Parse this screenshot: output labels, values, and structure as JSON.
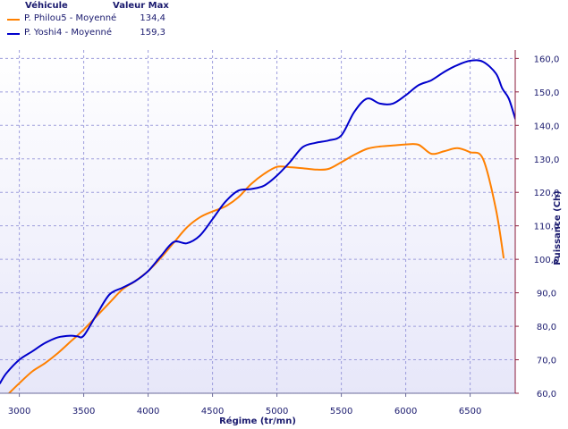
{
  "legend": {
    "header_vehicle": "Véhicule",
    "header_max": "Valeur Max"
  },
  "chart_data": {
    "type": "line",
    "xlabel": "Régime (tr/mn)",
    "ylabel": "Puissance (Ch)",
    "xlim": [
      2850,
      6850
    ],
    "ylim": [
      60,
      162.5
    ],
    "x_ticks": [
      3000,
      3500,
      4000,
      4500,
      5000,
      5500,
      6000,
      6500
    ],
    "x_tick_labels": [
      "3000",
      "3500",
      "4000",
      "4500",
      "5000",
      "5500",
      "6000",
      "6500"
    ],
    "y_ticks": [
      60,
      70,
      80,
      90,
      100,
      110,
      120,
      130,
      140,
      150,
      160
    ],
    "y_tick_labels": [
      "60,0",
      "70,0",
      "80,0",
      "90,0",
      "100,0",
      "110,0",
      "120,0",
      "130,0",
      "140,0",
      "150,0",
      "160,0"
    ],
    "grid": true,
    "y_axis_side": "right",
    "series": [
      {
        "name": "P. Philou5 - Moyenné",
        "max_label": "134,4",
        "color": "#ff8000",
        "x": [
          2920,
          3000,
          3100,
          3200,
          3300,
          3400,
          3500,
          3600,
          3700,
          3800,
          3900,
          4000,
          4100,
          4200,
          4300,
          4400,
          4500,
          4600,
          4700,
          4800,
          4900,
          5000,
          5100,
          5200,
          5300,
          5400,
          5500,
          5600,
          5700,
          5800,
          5900,
          6000,
          6100,
          6200,
          6300,
          6400,
          6500,
          6600,
          6700,
          6760
        ],
        "y": [
          60,
          63,
          66.5,
          69,
          72,
          75.5,
          79,
          83,
          87,
          91,
          93.5,
          96.5,
          100.5,
          105,
          109.5,
          112.5,
          114.3,
          115.8,
          118.5,
          122.5,
          125.5,
          127.6,
          127.5,
          127.2,
          126.8,
          127,
          129,
          131.2,
          133,
          133.7,
          134,
          134.3,
          134.2,
          131.5,
          132.3,
          133.2,
          132,
          130,
          115,
          100.5
        ]
      },
      {
        "name": "P. Yoshi4 - Moyenné",
        "max_label": "159,3",
        "color": "#0000cc",
        "x": [
          2850,
          2900,
          3000,
          3100,
          3200,
          3300,
          3400,
          3450,
          3500,
          3600,
          3700,
          3800,
          3900,
          4000,
          4100,
          4200,
          4300,
          4400,
          4500,
          4600,
          4700,
          4800,
          4900,
          5000,
          5100,
          5200,
          5300,
          5400,
          5500,
          5600,
          5700,
          5800,
          5900,
          6000,
          6100,
          6200,
          6300,
          6400,
          6500,
          6600,
          6700,
          6750,
          6800,
          6850
        ],
        "y": [
          63,
          66,
          70,
          72.5,
          75,
          76.7,
          77.2,
          77,
          77.2,
          83.5,
          89.5,
          91.5,
          93.5,
          96.5,
          101,
          105.2,
          104.8,
          107,
          112,
          117.2,
          120.5,
          121,
          122,
          125,
          129,
          133.5,
          134.8,
          135.5,
          137,
          144,
          148,
          146.5,
          146.5,
          149,
          152,
          153.5,
          156,
          158,
          159.3,
          159,
          155.5,
          151,
          148,
          142
        ]
      }
    ]
  }
}
